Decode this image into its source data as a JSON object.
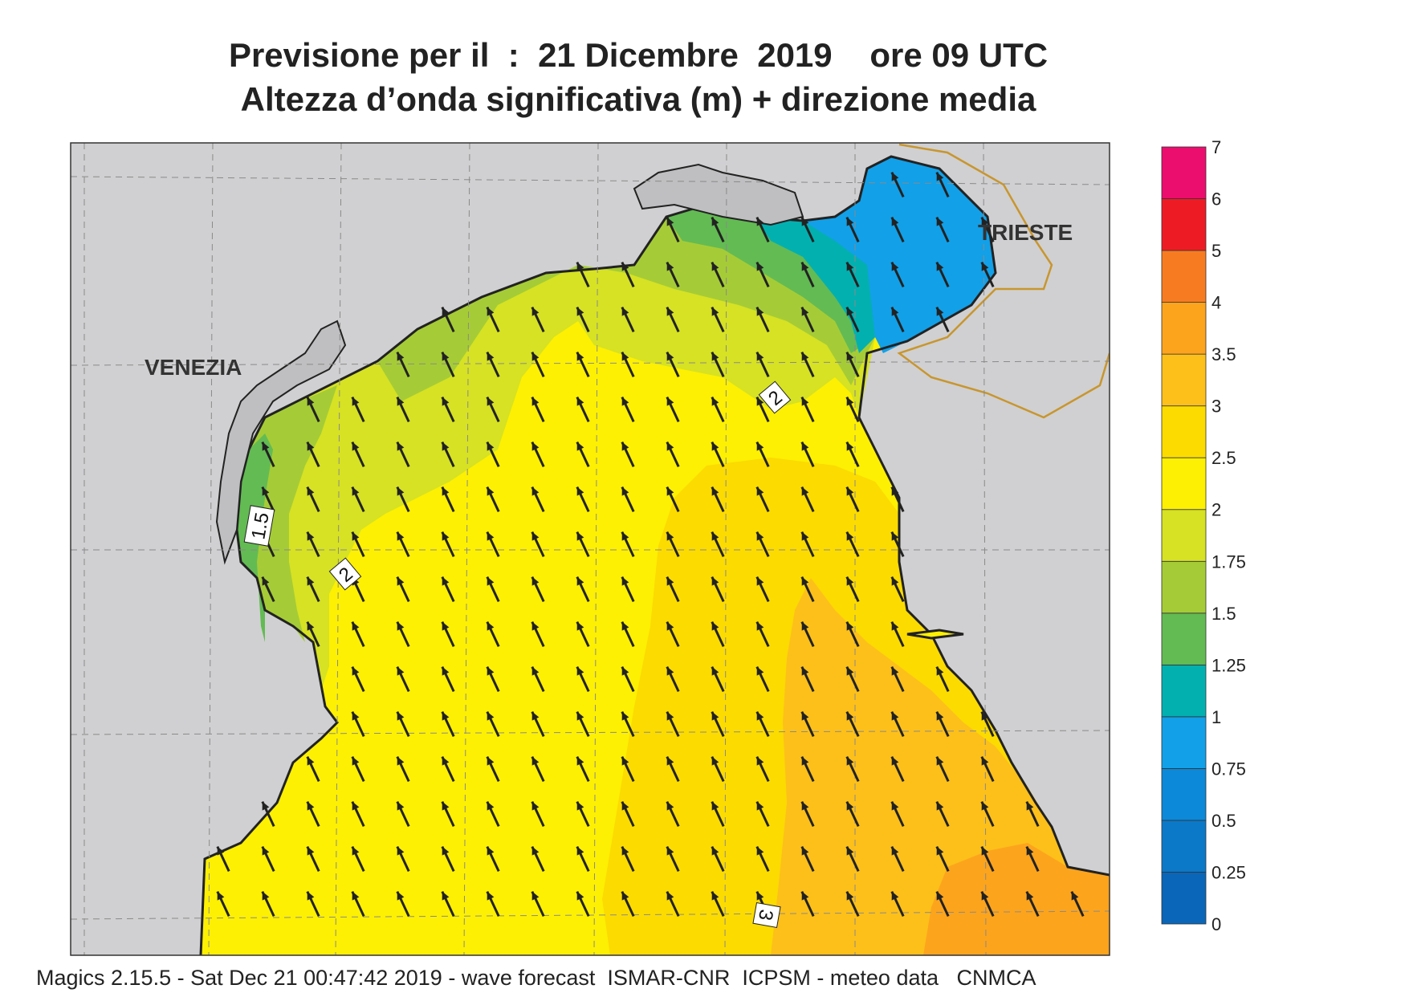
{
  "title": {
    "line1": "Previsione per il  :  21 Dicembre  2019    ore 09 UTC",
    "line2": "Altezza d’onda significativa (m) + direzione media"
  },
  "cities": {
    "venezia": "VENEZIA",
    "trieste": "TRIESTE"
  },
  "contour_labels": [
    "2",
    "2",
    "1.5",
    "3"
  ],
  "legend": {
    "levels": [
      "0",
      "0.25",
      "0.5",
      "0.75",
      "1",
      "1.25",
      "1.5",
      "1.75",
      "2",
      "2.5",
      "3",
      "3.5",
      "4",
      "5",
      "6",
      "7"
    ],
    "colors": [
      "#0a66b8",
      "#0b79c8",
      "#0c89d8",
      "#12a0e8",
      "#03b0b0",
      "#63bb53",
      "#a5cc36",
      "#d6e223",
      "#fdf002",
      "#fcdb00",
      "#fdc01a",
      "#fda41d",
      "#f77c21",
      "#ed1c24",
      "#ec0e6e"
    ]
  },
  "arrow_direction": "NNW",
  "footer": "Magics 2.15.5 - Sat Dec 21 00:47:42 2019 - wave forecast  ISMAR-CNR  ICPSM - meteo data   CNMCA"
}
